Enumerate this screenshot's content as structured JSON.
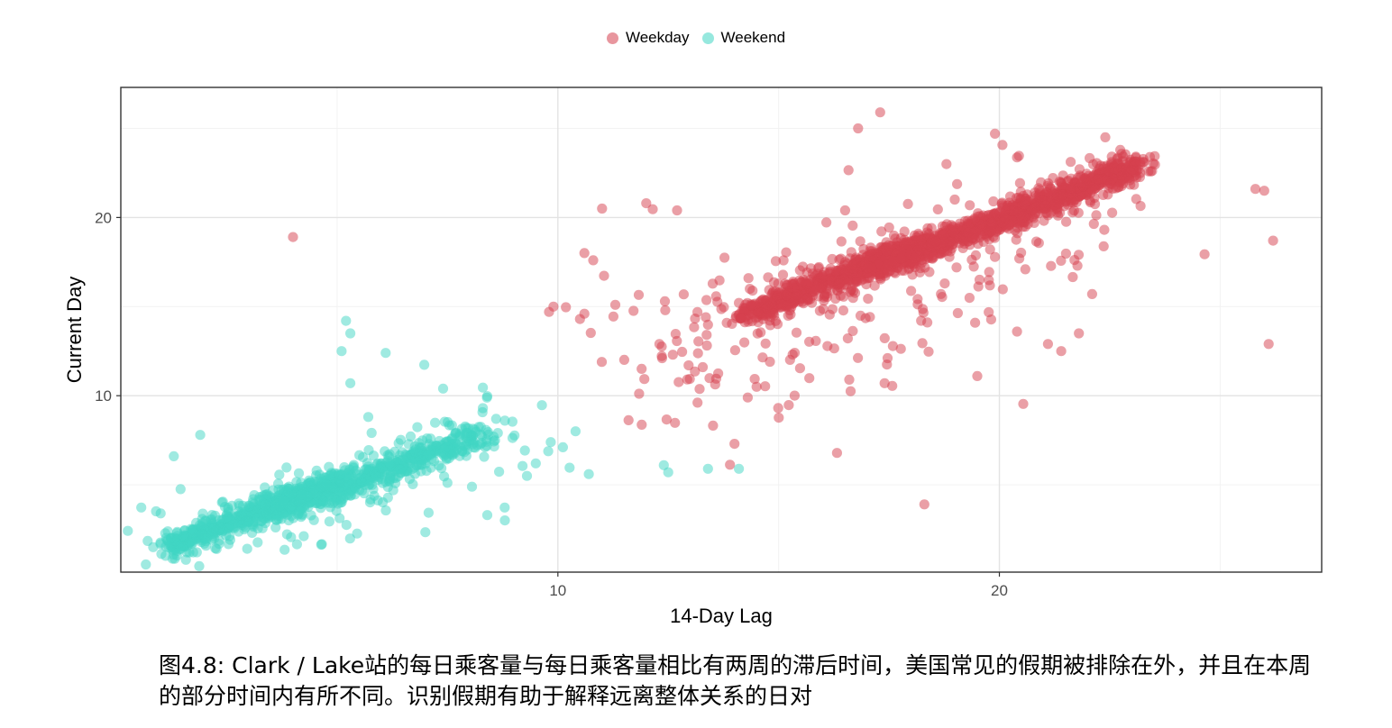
{
  "chart_data": {
    "type": "scatter",
    "xlabel": "14-Day Lag",
    "ylabel": "Current Day",
    "xlim": [
      0.1,
      27.3
    ],
    "ylim": [
      0.1,
      27.3
    ],
    "x_ticks": [
      10,
      20
    ],
    "y_ticks": [
      10,
      20
    ],
    "grid": true,
    "legend_position": "top",
    "series": [
      {
        "name": "Weekday",
        "color": "#D6404E",
        "clusters": [
          {
            "x": [
              14.2,
              18.2
            ],
            "y": [
              14.5,
              18.5
            ],
            "n": 650,
            "spread": 0.35
          },
          {
            "x": [
              17.0,
              23.2
            ],
            "y": [
              17.0,
              23.0
            ],
            "n": 1100,
            "spread": 0.35
          },
          {
            "x": [
              11.5,
              22.0
            ],
            "y": [
              11.0,
              20.5
            ],
            "n": 260,
            "spread": 2.2
          }
        ],
        "points": [
          {
            "x": 4.0,
            "y": 18.9
          },
          {
            "x": 17.3,
            "y": 25.9
          },
          {
            "x": 16.8,
            "y": 25.0
          },
          {
            "x": 19.9,
            "y": 24.7
          },
          {
            "x": 22.4,
            "y": 24.5
          },
          {
            "x": 25.8,
            "y": 21.6
          },
          {
            "x": 26.0,
            "y": 21.5
          },
          {
            "x": 26.1,
            "y": 12.9
          },
          {
            "x": 26.2,
            "y": 18.7
          },
          {
            "x": 18.3,
            "y": 3.9
          },
          {
            "x": 14.0,
            "y": 7.3
          },
          {
            "x": 9.8,
            "y": 14.7
          },
          {
            "x": 9.9,
            "y": 15.0
          },
          {
            "x": 10.5,
            "y": 14.3
          },
          {
            "x": 10.6,
            "y": 14.6
          },
          {
            "x": 10.6,
            "y": 18.0
          },
          {
            "x": 10.8,
            "y": 17.6
          },
          {
            "x": 11.0,
            "y": 20.5
          },
          {
            "x": 11.3,
            "y": 15.1
          },
          {
            "x": 12.3,
            "y": 12.9
          },
          {
            "x": 14.5,
            "y": 10.5
          },
          {
            "x": 14.3,
            "y": 9.9
          },
          {
            "x": 17.4,
            "y": 10.7
          },
          {
            "x": 16.6,
            "y": 10.9
          },
          {
            "x": 19.5,
            "y": 11.1
          },
          {
            "x": 22.1,
            "y": 15.7
          },
          {
            "x": 21.1,
            "y": 12.9
          },
          {
            "x": 21.4,
            "y": 12.5
          },
          {
            "x": 20.4,
            "y": 13.6
          },
          {
            "x": 18.8,
            "y": 23.0
          },
          {
            "x": 21.8,
            "y": 13.5
          },
          {
            "x": 12.0,
            "y": 20.8
          },
          {
            "x": 12.7,
            "y": 20.4
          }
        ]
      },
      {
        "name": "Weekend",
        "color": "#40D6C3",
        "clusters": [
          {
            "x": [
              1.2,
              5.0
            ],
            "y": [
              1.5,
              5.2
            ],
            "n": 520,
            "spread": 0.32
          },
          {
            "x": [
              3.5,
              8.3
            ],
            "y": [
              3.6,
              7.8
            ],
            "n": 520,
            "spread": 0.4
          },
          {
            "x": [
              1.5,
              8.8
            ],
            "y": [
              1.5,
              8.5
            ],
            "n": 160,
            "spread": 1.6
          }
        ],
        "points": [
          {
            "x": 5.2,
            "y": 14.2
          },
          {
            "x": 5.3,
            "y": 13.5
          },
          {
            "x": 5.1,
            "y": 12.5
          },
          {
            "x": 6.1,
            "y": 12.4
          },
          {
            "x": 5.3,
            "y": 10.7
          },
          {
            "x": 7.4,
            "y": 10.4
          },
          {
            "x": 10.4,
            "y": 8.0
          },
          {
            "x": 10.7,
            "y": 5.6
          },
          {
            "x": 12.4,
            "y": 6.1
          },
          {
            "x": 12.5,
            "y": 5.7
          },
          {
            "x": 13.4,
            "y": 5.9
          },
          {
            "x": 14.1,
            "y": 5.9
          },
          {
            "x": 9.5,
            "y": 6.2
          },
          {
            "x": 9.3,
            "y": 5.5
          },
          {
            "x": 8.8,
            "y": 8.6
          },
          {
            "x": 8.6,
            "y": 8.7
          },
          {
            "x": 8.3,
            "y": 9.3
          },
          {
            "x": 8.8,
            "y": 3.0
          },
          {
            "x": 8.4,
            "y": 3.3
          },
          {
            "x": 1.9,
            "y": 7.8
          },
          {
            "x": 1.3,
            "y": 6.6
          }
        ]
      }
    ]
  },
  "caption": "图4.8: Clark / Lake站的每日乘客量与每日乘客量相比有两周的滞后时间，美国常见的假期被排除在外，并且在本周的部分时间内有所不同。识别假期有助于解释远离整体关系的日对"
}
